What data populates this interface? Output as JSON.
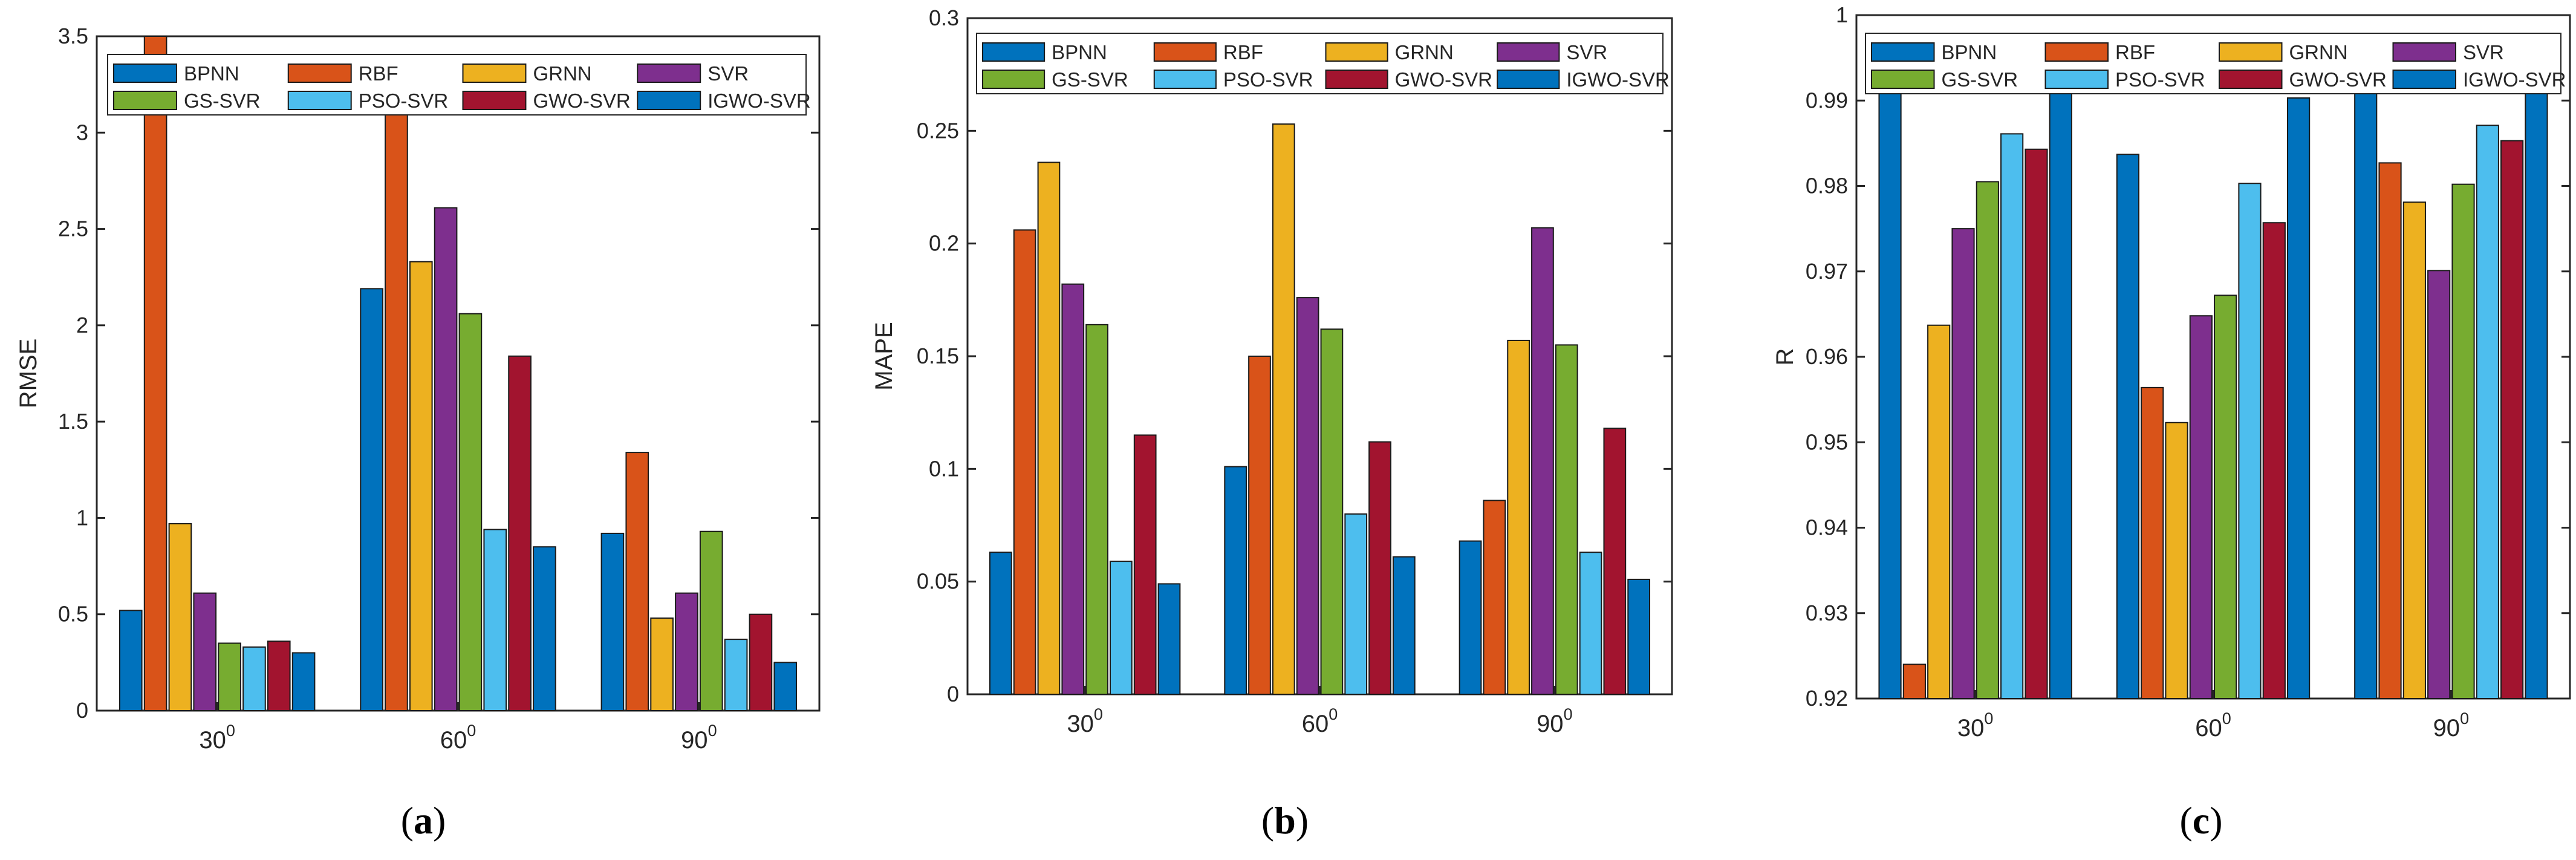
{
  "series_names": [
    "BPNN",
    "RBF",
    "GRNN",
    "SVR",
    "GS-SVR",
    "PSO-SVR",
    "GWO-SVR",
    "IGWO-SVR"
  ],
  "colors": [
    "#0072BD",
    "#D95319",
    "#EDB120",
    "#7E2F8E",
    "#77AC30",
    "#4DBEEE",
    "#A2142F",
    "#0072BD"
  ],
  "chart_data": [
    {
      "type": "bar",
      "panel": "(a)",
      "title": "",
      "xlabel": "",
      "ylabel": "RMSE",
      "categories": [
        {
          "base": "30",
          "sup": "0"
        },
        {
          "base": "60",
          "sup": "0"
        },
        {
          "base": "90",
          "sup": "0"
        }
      ],
      "ylim": [
        0,
        3.5
      ],
      "yticks": [
        0,
        0.5,
        1,
        1.5,
        2,
        2.5,
        3,
        3.5
      ],
      "ytick_labels": [
        "0",
        "0.5",
        "1",
        "1.5",
        "2",
        "2.5",
        "3",
        "3.5"
      ],
      "legend_position": "top",
      "series": [
        {
          "name": "BPNN",
          "values": [
            0.52,
            2.19,
            0.92
          ]
        },
        {
          "name": "RBF",
          "values": [
            3.6,
            3.2,
            1.34
          ]
        },
        {
          "name": "GRNN",
          "values": [
            0.97,
            2.33,
            0.48
          ]
        },
        {
          "name": "SVR",
          "values": [
            0.61,
            2.61,
            0.61
          ]
        },
        {
          "name": "GS-SVR",
          "values": [
            0.35,
            2.06,
            0.93
          ]
        },
        {
          "name": "PSO-SVR",
          "values": [
            0.33,
            0.94,
            0.37
          ]
        },
        {
          "name": "GWO-SVR",
          "values": [
            0.36,
            1.84,
            0.5
          ]
        },
        {
          "name": "IGWO-SVR",
          "values": [
            0.3,
            0.85,
            0.25
          ]
        }
      ]
    },
    {
      "type": "bar",
      "panel": "(b)",
      "title": "",
      "xlabel": "",
      "ylabel": "MAPE",
      "categories": [
        {
          "base": "30",
          "sup": "0"
        },
        {
          "base": "60",
          "sup": "0"
        },
        {
          "base": "90",
          "sup": "0"
        }
      ],
      "ylim": [
        0,
        0.3
      ],
      "yticks": [
        0,
        0.05,
        0.1,
        0.15,
        0.2,
        0.25,
        0.3
      ],
      "ytick_labels": [
        "0",
        "0.05",
        "0.1",
        "0.15",
        "0.2",
        "0.25",
        "0.3"
      ],
      "legend_position": "top",
      "series": [
        {
          "name": "BPNN",
          "values": [
            0.063,
            0.101,
            0.068
          ]
        },
        {
          "name": "RBF",
          "values": [
            0.206,
            0.15,
            0.086
          ]
        },
        {
          "name": "GRNN",
          "values": [
            0.236,
            0.253,
            0.157
          ]
        },
        {
          "name": "SVR",
          "values": [
            0.182,
            0.176,
            0.207
          ]
        },
        {
          "name": "GS-SVR",
          "values": [
            0.164,
            0.162,
            0.155
          ]
        },
        {
          "name": "PSO-SVR",
          "values": [
            0.059,
            0.08,
            0.063
          ]
        },
        {
          "name": "GWO-SVR",
          "values": [
            0.115,
            0.112,
            0.118
          ]
        },
        {
          "name": "IGWO-SVR",
          "values": [
            0.049,
            0.061,
            0.051
          ]
        }
      ]
    },
    {
      "type": "bar",
      "panel": "(c)",
      "title": "",
      "xlabel": "",
      "ylabel": "R",
      "categories": [
        {
          "base": "30",
          "sup": "0"
        },
        {
          "base": "60",
          "sup": "0"
        },
        {
          "base": "90",
          "sup": "0"
        }
      ],
      "ylim": [
        0.92,
        1.0
      ],
      "yticks": [
        0.92,
        0.93,
        0.94,
        0.95,
        0.96,
        0.97,
        0.98,
        0.99,
        1.0
      ],
      "ytick_labels": [
        "0.92",
        "0.93",
        "0.94",
        "0.95",
        "0.96",
        "0.97",
        "0.98",
        "0.99",
        "1"
      ],
      "legend_position": "top",
      "series": [
        {
          "name": "BPNN",
          "values": [
            0.9922,
            0.9837,
            0.9948
          ]
        },
        {
          "name": "RBF",
          "values": [
            0.924,
            0.9564,
            0.9827
          ]
        },
        {
          "name": "GRNN",
          "values": [
            0.9637,
            0.9523,
            0.9781
          ]
        },
        {
          "name": "SVR",
          "values": [
            0.975,
            0.9648,
            0.9701
          ]
        },
        {
          "name": "GS-SVR",
          "values": [
            0.9805,
            0.9672,
            0.9802
          ]
        },
        {
          "name": "PSO-SVR",
          "values": [
            0.9861,
            0.9803,
            0.9871
          ]
        },
        {
          "name": "GWO-SVR",
          "values": [
            0.9843,
            0.9757,
            0.9853
          ]
        },
        {
          "name": "IGWO-SVR",
          "values": [
            0.9975,
            0.9903,
            0.9975
          ]
        }
      ]
    }
  ]
}
